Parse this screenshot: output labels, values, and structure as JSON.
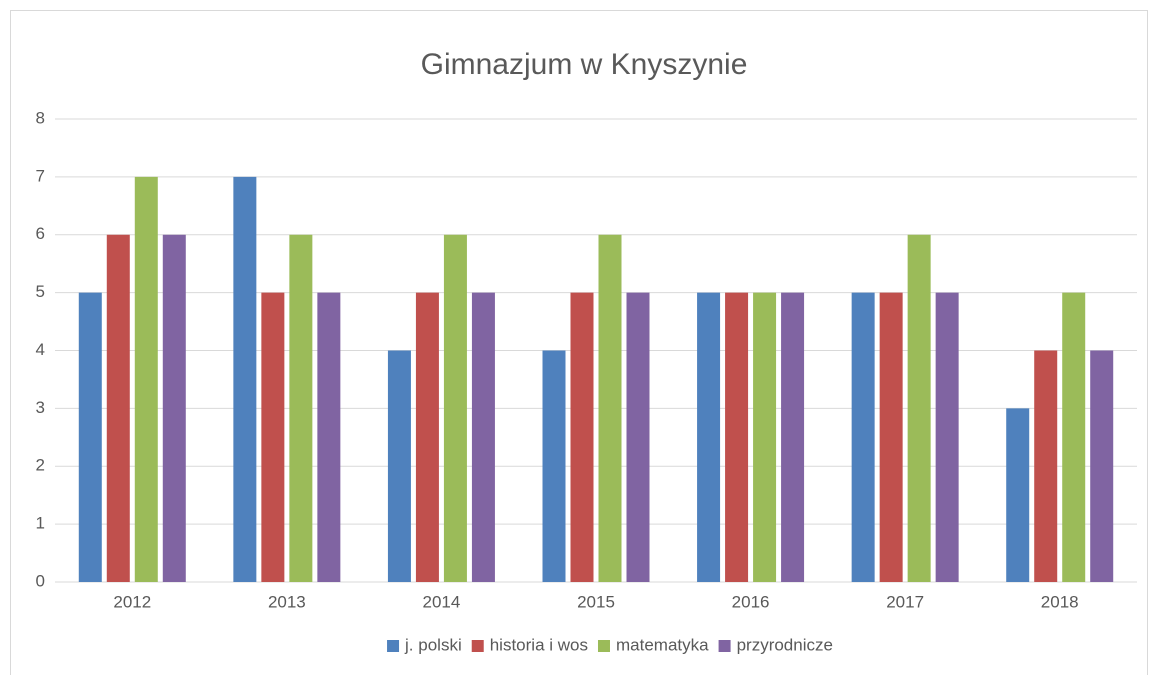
{
  "chart_data": {
    "type": "bar",
    "title": "Gimnazjum w Knyszynie",
    "categories": [
      "2012",
      "2013",
      "2014",
      "2015",
      "2016",
      "2017",
      "2018"
    ],
    "series": [
      {
        "name": "j. polski",
        "color": "#4f81bd",
        "values": [
          5,
          7,
          4,
          4,
          5,
          5,
          3
        ]
      },
      {
        "name": "historia i wos",
        "color": "#c0504d",
        "values": [
          6,
          5,
          5,
          5,
          5,
          5,
          4
        ]
      },
      {
        "name": "matematyka",
        "color": "#9bbb59",
        "values": [
          7,
          6,
          6,
          6,
          5,
          6,
          5
        ]
      },
      {
        "name": "przyrodnicze",
        "color": "#8064a2",
        "values": [
          6,
          5,
          5,
          5,
          5,
          5,
          4
        ]
      }
    ],
    "ylim": [
      0,
      8
    ],
    "yticks": [
      0,
      1,
      2,
      3,
      4,
      5,
      6,
      7,
      8
    ],
    "grid": true,
    "legend": "bottom"
  }
}
